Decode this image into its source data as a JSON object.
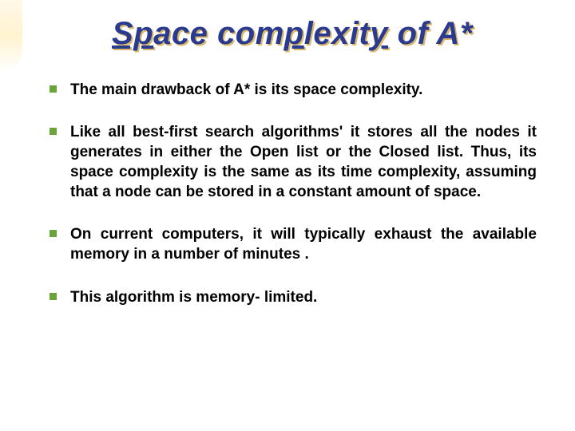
{
  "slide": {
    "title_plain": "Space complexity of A*",
    "title_words": [
      {
        "text": "Sp",
        "underline": true
      },
      {
        "text": "ace com",
        "underline": false
      },
      {
        "text": "p",
        "underline": true
      },
      {
        "text": "lexit",
        "underline": false
      },
      {
        "text": "y",
        "underline": true
      },
      {
        "text": " of A*",
        "underline": false
      }
    ],
    "title_color_main": "#2a3a8f",
    "title_color_shadow": "#d9b86b",
    "bullet_marker_color": "#6aa53a",
    "text_color": "#000000",
    "background_color": "#ffffff",
    "title_fontsize": 40,
    "body_fontsize": 19,
    "bullets": [
      "The main drawback of A* is its space complexity.",
      "Like all best-first search algorithms' it stores all the nodes it generates in either the Open list or the Closed list. Thus, its space complexity is the same  as its time complexity, assuming that a node can be stored  in a constant amount of space.",
      "On current computers, it will typically exhaust  the available memory in a number of minutes .",
      " This algorithm is memory- limited."
    ]
  }
}
